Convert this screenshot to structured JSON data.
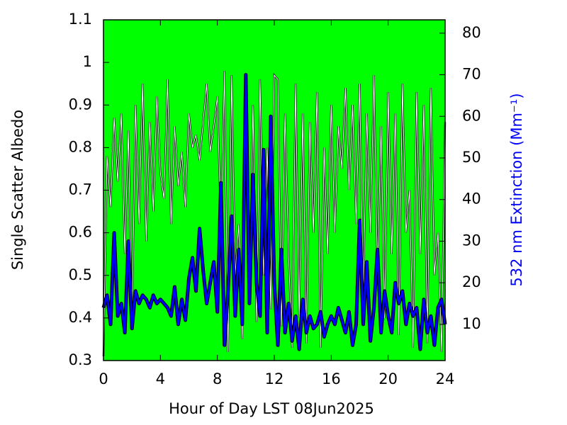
{
  "chart_data": {
    "type": "line",
    "xlabel": "Hour of Day LST 08Jun2025",
    "ylabel": "Single Scatter Albedo",
    "y2label": "532 nm Extinction (Mm⁻¹)",
    "background": "#00ff00",
    "xlim": [
      0,
      24
    ],
    "xticks": [
      0,
      4,
      8,
      12,
      16,
      20,
      24
    ],
    "ylim": [
      0.3,
      1.1
    ],
    "yticks": [
      0.3,
      0.4,
      0.5,
      0.6,
      0.7,
      0.8,
      0.9,
      1,
      1.1
    ],
    "y2lim": [
      1.3,
      83.2
    ],
    "y2ticks": [
      10,
      20,
      30,
      40,
      50,
      60,
      70,
      80
    ],
    "x": [
      0,
      0.25,
      0.5,
      0.75,
      1,
      1.25,
      1.5,
      1.75,
      2,
      2.25,
      2.5,
      2.75,
      3,
      3.25,
      3.5,
      3.75,
      4,
      4.25,
      4.5,
      4.75,
      5,
      5.25,
      5.5,
      5.75,
      6,
      6.25,
      6.5,
      6.75,
      7,
      7.25,
      7.5,
      7.75,
      8,
      8.25,
      8.5,
      8.75,
      9,
      9.25,
      9.5,
      9.75,
      10,
      10.25,
      10.5,
      10.75,
      11,
      11.25,
      11.5,
      11.75,
      12,
      12.25,
      12.5,
      12.75,
      13,
      13.25,
      13.5,
      13.75,
      14,
      14.25,
      14.5,
      14.75,
      15,
      15.25,
      15.5,
      15.75,
      16,
      16.25,
      16.5,
      16.75,
      17,
      17.25,
      17.5,
      17.75,
      18,
      18.25,
      18.5,
      18.75,
      19,
      19.25,
      19.5,
      19.75,
      20,
      20.25,
      20.5,
      20.75,
      21,
      21.25,
      21.5,
      21.75,
      22,
      22.25,
      22.5,
      22.75,
      23,
      23.25,
      23.5,
      23.75,
      24
    ],
    "series": [
      {
        "color": "#ffffff",
        "values": [
          0.31,
          0.78,
          0.66,
          0.87,
          0.72,
          0.88,
          0.55,
          0.84,
          0.38,
          0.9,
          0.62,
          0.95,
          0.58,
          0.86,
          0.65,
          0.92,
          0.74,
          0.68,
          0.96,
          0.62,
          0.85,
          0.71,
          0.79,
          0.66,
          0.88,
          0.8,
          0.83,
          0.77,
          0.86,
          0.95,
          0.79,
          0.85,
          0.92,
          0.6,
          0.98,
          0.32,
          0.97,
          0.5,
          0.62,
          0.35,
          0.97,
          0.45,
          0.9,
          0.39,
          0.96,
          0.5,
          0.8,
          0.42,
          0.97,
          0.96,
          0.38,
          0.88,
          0.55,
          0.33,
          0.95,
          0.4,
          0.88,
          0.34,
          0.86,
          0.6,
          0.93,
          0.33,
          0.8,
          0.55,
          0.9,
          0.6,
          0.85,
          0.75,
          0.94,
          0.7,
          0.9,
          0.62,
          0.95,
          0.45,
          0.88,
          0.6,
          0.97,
          0.5,
          0.85,
          0.4,
          0.93,
          0.55,
          0.88,
          0.36,
          0.95,
          0.6,
          0.7,
          0.33,
          0.93,
          0.55,
          0.9,
          0.34,
          0.94,
          0.5,
          0.6,
          0.32,
          0.86
        ]
      },
      {
        "color": "#0000ff",
        "axis": "y2",
        "values": [
          14,
          17,
          10,
          32,
          12,
          15,
          8,
          30,
          9,
          18,
          15,
          17,
          16,
          14,
          17,
          15,
          16,
          15,
          14,
          12,
          19,
          10,
          16,
          11,
          21,
          26,
          18,
          33,
          23,
          15,
          20,
          25,
          13,
          44,
          5,
          18,
          36,
          12,
          28,
          10,
          70,
          15,
          46,
          20,
          12,
          52,
          8,
          60,
          20,
          5,
          28,
          8,
          15,
          6,
          12,
          4,
          16,
          8,
          12,
          9,
          10,
          13,
          7,
          10,
          12,
          10,
          14,
          11,
          8,
          13,
          5,
          10,
          35,
          10,
          25,
          6,
          14,
          28,
          8,
          18,
          12,
          8,
          20,
          15,
          18,
          10,
          15,
          12,
          14,
          4,
          16,
          8,
          12,
          5,
          14,
          16,
          10
        ]
      }
    ]
  }
}
